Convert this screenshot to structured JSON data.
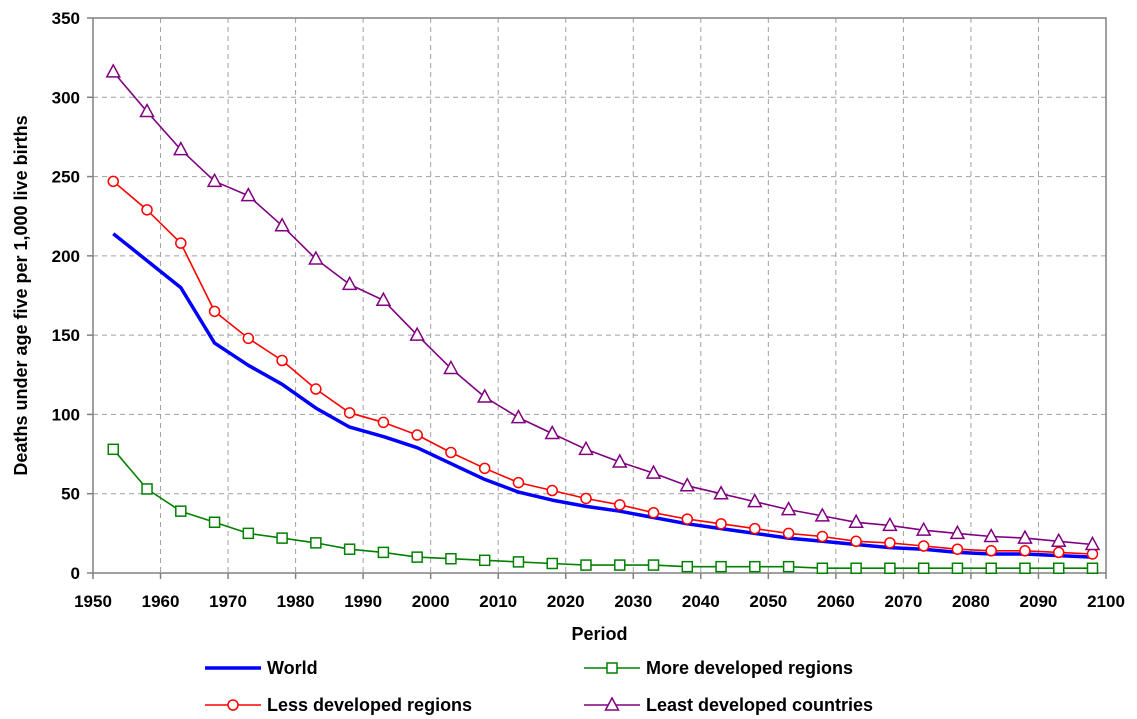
{
  "chart_data": {
    "type": "line",
    "title": "",
    "xlabel": "Period",
    "ylabel": "Deaths under age five per 1,000 live births",
    "xlim": [
      1950,
      2100
    ],
    "ylim": [
      0,
      350
    ],
    "xticks": [
      1950,
      1960,
      1970,
      1980,
      1990,
      2000,
      2010,
      2020,
      2030,
      2040,
      2050,
      2060,
      2070,
      2080,
      2090,
      2100
    ],
    "yticks": [
      0,
      50,
      100,
      150,
      200,
      250,
      300,
      350
    ],
    "grid": true,
    "legend_position": "bottom",
    "x": [
      1953,
      1958,
      1963,
      1968,
      1973,
      1978,
      1983,
      1988,
      1993,
      1998,
      2003,
      2008,
      2013,
      2018,
      2023,
      2028,
      2033,
      2038,
      2043,
      2048,
      2053,
      2058,
      2063,
      2068,
      2073,
      2078,
      2083,
      2088,
      2093,
      2098
    ],
    "series": [
      {
        "name": "World",
        "color": "#0000ff",
        "marker": "none",
        "values": [
          214,
          197,
          180,
          145,
          131,
          119,
          104,
          92,
          86,
          79,
          69,
          59,
          51,
          46,
          42,
          39,
          35,
          31,
          28,
          25,
          22,
          20,
          18,
          16,
          15,
          13,
          12,
          12,
          11,
          10
        ]
      },
      {
        "name": "More developed regions",
        "color": "#008000",
        "marker": "square",
        "values": [
          78,
          53,
          39,
          32,
          25,
          22,
          19,
          15,
          13,
          10,
          9,
          8,
          7,
          6,
          5,
          5,
          5,
          4,
          4,
          4,
          4,
          3,
          3,
          3,
          3,
          3,
          3,
          3,
          3,
          3
        ]
      },
      {
        "name": "Less developed regions",
        "color": "#ff0000",
        "marker": "circle",
        "values": [
          247,
          229,
          208,
          165,
          148,
          134,
          116,
          101,
          95,
          87,
          76,
          66,
          57,
          52,
          47,
          43,
          38,
          34,
          31,
          28,
          25,
          23,
          20,
          19,
          17,
          15,
          14,
          14,
          13,
          12
        ]
      },
      {
        "name": "Least developed countries",
        "color": "#800080",
        "marker": "triangle",
        "values": [
          316,
          291,
          267,
          247,
          238,
          219,
          198,
          182,
          172,
          150,
          129,
          111,
          98,
          88,
          78,
          70,
          63,
          55,
          50,
          45,
          40,
          36,
          32,
          30,
          27,
          25,
          23,
          22,
          20,
          18
        ]
      }
    ]
  }
}
